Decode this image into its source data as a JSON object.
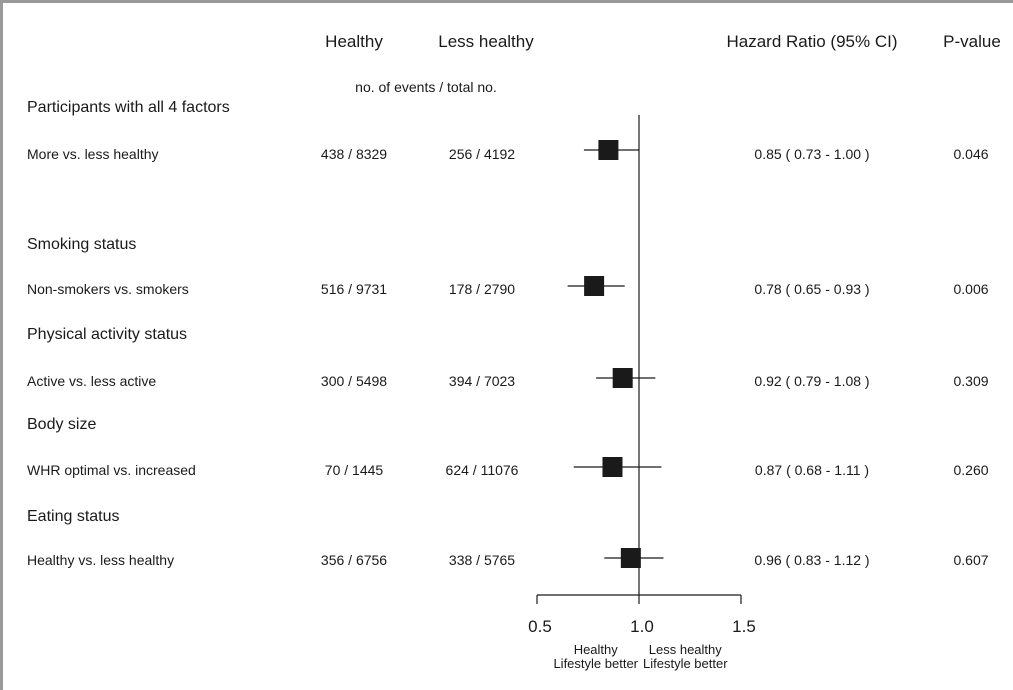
{
  "header": {
    "col_healthy": "Healthy",
    "col_less_healthy": "Less healthy",
    "col_hr": "Hazard Ratio (95% CI)",
    "col_p": "P-value",
    "subheader": "no. of events / total no."
  },
  "chart_data": {
    "type": "forest",
    "xlim": [
      0.5,
      1.5
    ],
    "reference_line": 1.0,
    "x_ticks": [
      "0.5",
      "1.0",
      "1.5"
    ],
    "footer_left": [
      "Healthy",
      "Lifestyle better"
    ],
    "footer_right": [
      "Less healthy",
      "Lifestyle  better"
    ],
    "sections": [
      {
        "title": "Participants with all 4 factors",
        "row": {
          "label": "More vs. less healthy",
          "healthy": "438 / 8329",
          "less": "256 /  4192",
          "hr": 0.85,
          "lo": 0.73,
          "hi": 1.0,
          "ci_text": "0.85 ( 0.73 - 1.00 )",
          "p": "0.046"
        }
      },
      {
        "title": "Smoking status",
        "row": {
          "label": "Non-smokers vs. smokers",
          "healthy": "516 / 9731",
          "less": "178 /  2790",
          "hr": 0.78,
          "lo": 0.65,
          "hi": 0.93,
          "ci_text": "0.78 ( 0.65 - 0.93 )",
          "p": "0.006"
        }
      },
      {
        "title": "Physical activity status",
        "row": {
          "label": "Active vs. less active",
          "healthy": "300 / 5498",
          "less": "394 /  7023",
          "hr": 0.92,
          "lo": 0.79,
          "hi": 1.08,
          "ci_text": "0.92 ( 0.79 - 1.08 )",
          "p": "0.309"
        }
      },
      {
        "title": "Body size",
        "row": {
          "label": "WHR optimal vs. increased",
          "healthy": "70 / 1445",
          "less": "624 / 11076",
          "hr": 0.87,
          "lo": 0.68,
          "hi": 1.11,
          "ci_text": "0.87 ( 0.68 - 1.11 )",
          "p": "0.260"
        }
      },
      {
        "title": "Eating status",
        "row": {
          "label": "Healthy vs. less healthy",
          "healthy": "356 / 6756",
          "less": "338 /  5765",
          "hr": 0.96,
          "lo": 0.83,
          "hi": 1.12,
          "ci_text": "0.96 ( 0.83 - 1.12 )",
          "p": "0.607"
        }
      }
    ]
  }
}
